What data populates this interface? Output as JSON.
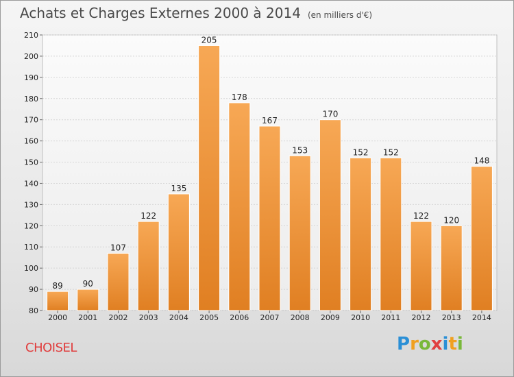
{
  "header": {
    "title": "Achats et Charges Externes 2000 à 2014",
    "unit": "(en milliers d'€)"
  },
  "footer": {
    "commune": "CHOISEL",
    "logo_text": "Proxiti"
  },
  "colors": {
    "bar_light": "#f7a855",
    "bar_dark": "#e07f22",
    "commune_text": "#e03c3c"
  },
  "chart_data": {
    "type": "bar",
    "categories": [
      "2000",
      "2001",
      "2002",
      "2003",
      "2004",
      "2005",
      "2006",
      "2007",
      "2008",
      "2009",
      "2010",
      "2011",
      "2012",
      "2013",
      "2014"
    ],
    "values": [
      89,
      90,
      107,
      122,
      135,
      205,
      178,
      167,
      153,
      170,
      152,
      152,
      122,
      120,
      148
    ],
    "title": "Achats et Charges Externes 2000 à 2014",
    "ylim": [
      80,
      210
    ],
    "yticks": [
      80,
      90,
      100,
      110,
      120,
      130,
      140,
      150,
      160,
      170,
      180,
      190,
      200,
      210
    ],
    "grid": true,
    "legend": "none"
  }
}
